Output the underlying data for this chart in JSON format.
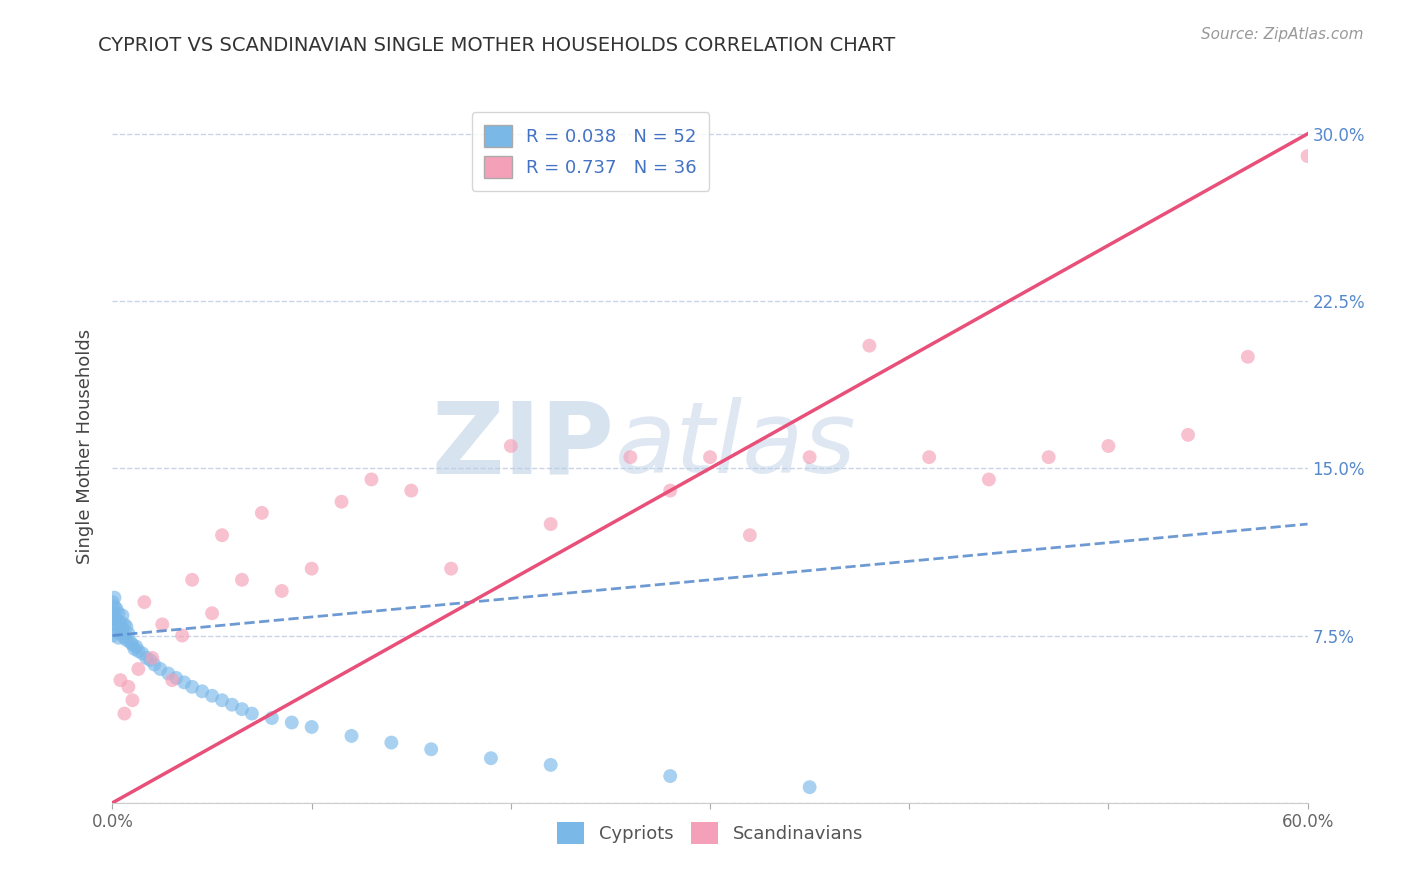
{
  "title": "CYPRIOT VS SCANDINAVIAN SINGLE MOTHER HOUSEHOLDS CORRELATION CHART",
  "source": "Source: ZipAtlas.com",
  "ylabel": "Single Mother Households",
  "xlim": [
    0.0,
    0.6
  ],
  "ylim": [
    0.0,
    0.32
  ],
  "xticks": [
    0.0,
    0.1,
    0.2,
    0.3,
    0.4,
    0.5,
    0.6
  ],
  "xticklabels": [
    "0.0%",
    "",
    "",
    "",
    "",
    "",
    "60.0%"
  ],
  "yticks": [
    0.0,
    0.075,
    0.15,
    0.225,
    0.3
  ],
  "yticklabels_right": [
    "",
    "7.5%",
    "15.0%",
    "22.5%",
    "30.0%"
  ],
  "legend_R1": "R = 0.038",
  "legend_N1": "N = 52",
  "legend_R2": "R = 0.737",
  "legend_N2": "N = 36",
  "color_cypriot": "#7ab8e8",
  "color_scandinavian": "#f4a0b8",
  "color_cypriot_line": "#5588cc",
  "color_scandinavian_line": "#e8507a",
  "watermark_zip": "ZIP",
  "watermark_atlas": "atlas",
  "background_color": "#ffffff",
  "grid_color": "#c8d4e8",
  "cypriot_x": [
    0.0,
    0.0,
    0.0,
    0.0,
    0.001,
    0.001,
    0.001,
    0.002,
    0.002,
    0.002,
    0.003,
    0.003,
    0.003,
    0.004,
    0.004,
    0.005,
    0.005,
    0.006,
    0.006,
    0.007,
    0.007,
    0.008,
    0.009,
    0.01,
    0.011,
    0.012,
    0.013,
    0.015,
    0.017,
    0.019,
    0.021,
    0.024,
    0.028,
    0.032,
    0.036,
    0.04,
    0.045,
    0.05,
    0.055,
    0.06,
    0.065,
    0.07,
    0.08,
    0.09,
    0.1,
    0.12,
    0.14,
    0.16,
    0.19,
    0.22,
    0.28,
    0.35
  ],
  "cypriot_y": [
    0.09,
    0.085,
    0.08,
    0.075,
    0.092,
    0.088,
    0.083,
    0.087,
    0.082,
    0.078,
    0.085,
    0.079,
    0.074,
    0.081,
    0.076,
    0.084,
    0.078,
    0.08,
    0.074,
    0.079,
    0.073,
    0.076,
    0.072,
    0.071,
    0.069,
    0.07,
    0.068,
    0.067,
    0.065,
    0.064,
    0.062,
    0.06,
    0.058,
    0.056,
    0.054,
    0.052,
    0.05,
    0.048,
    0.046,
    0.044,
    0.042,
    0.04,
    0.038,
    0.036,
    0.034,
    0.03,
    0.027,
    0.024,
    0.02,
    0.017,
    0.012,
    0.007
  ],
  "scandinavian_x": [
    0.004,
    0.006,
    0.008,
    0.01,
    0.013,
    0.016,
    0.02,
    0.025,
    0.03,
    0.035,
    0.04,
    0.05,
    0.055,
    0.065,
    0.075,
    0.085,
    0.1,
    0.115,
    0.13,
    0.15,
    0.17,
    0.2,
    0.22,
    0.26,
    0.28,
    0.3,
    0.32,
    0.35,
    0.38,
    0.41,
    0.44,
    0.47,
    0.5,
    0.54,
    0.57,
    0.6
  ],
  "scandinavian_y": [
    0.055,
    0.04,
    0.052,
    0.046,
    0.06,
    0.09,
    0.065,
    0.08,
    0.055,
    0.075,
    0.1,
    0.085,
    0.12,
    0.1,
    0.13,
    0.095,
    0.105,
    0.135,
    0.145,
    0.14,
    0.105,
    0.16,
    0.125,
    0.155,
    0.14,
    0.155,
    0.12,
    0.155,
    0.205,
    0.155,
    0.145,
    0.155,
    0.16,
    0.165,
    0.2,
    0.29
  ],
  "cypriot_line_x": [
    0.0,
    0.6
  ],
  "cypriot_line_y": [
    0.075,
    0.125
  ],
  "scandinavian_line_x": [
    0.0,
    0.6
  ],
  "scandinavian_line_y": [
    0.0,
    0.3
  ]
}
